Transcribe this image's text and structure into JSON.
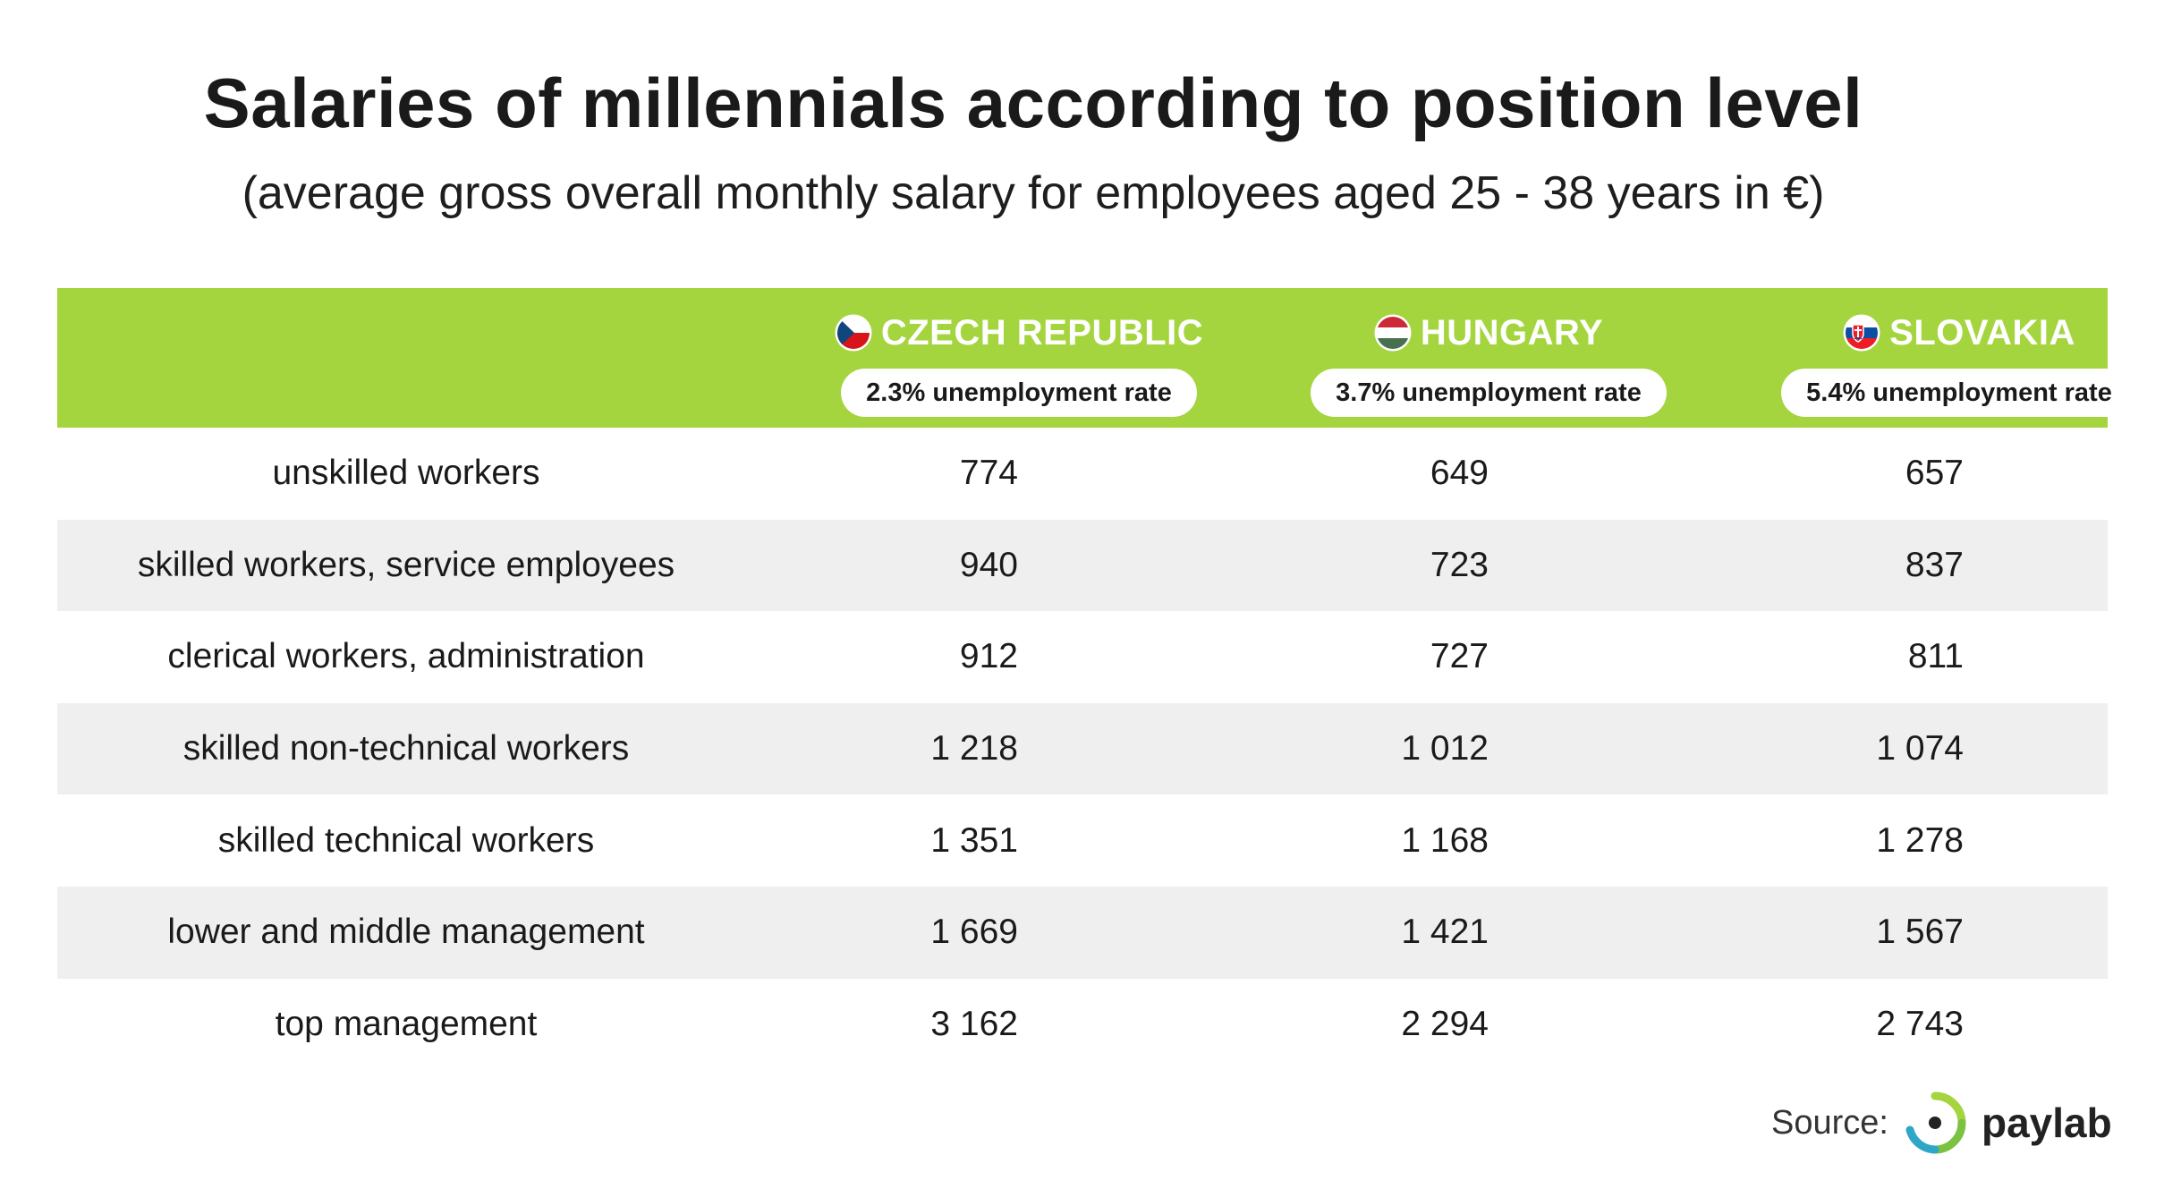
{
  "title": "Salaries of millennials according to position level",
  "subtitle": "(average gross overall monthly salary for employees aged 25 - 38 years in €)",
  "colors": {
    "header_bg": "#a4d53f",
    "alt_row_bg": "#efefef",
    "logo_green": "#a4d53f",
    "logo_blue": "#2fa6c8"
  },
  "chart_data": {
    "type": "table",
    "columns": [
      {
        "country": "CZECH REPUBLIC",
        "flag_icon": "czech-flag-icon",
        "unemployment": "2.3% unemployment rate"
      },
      {
        "country": "HUNGARY",
        "flag_icon": "hungary-flag-icon",
        "unemployment": "3.7% unemployment rate"
      },
      {
        "country": "SLOVAKIA",
        "flag_icon": "slovakia-flag-icon",
        "unemployment": "5.4% unemployment rate"
      }
    ],
    "rows": [
      {
        "label": "unskilled workers",
        "values": [
          "774",
          "649",
          "657"
        ]
      },
      {
        "label": "skilled workers, service employees",
        "values": [
          "940",
          "723",
          "837"
        ]
      },
      {
        "label": "clerical workers, administration",
        "values": [
          "912",
          "727",
          "811"
        ]
      },
      {
        "label": "skilled non-technical workers",
        "values": [
          "1 218",
          "1 012",
          "1 074"
        ]
      },
      {
        "label": "skilled technical workers",
        "values": [
          "1 351",
          "1 168",
          "1 278"
        ]
      },
      {
        "label": "lower and middle management",
        "values": [
          "1 669",
          "1 421",
          "1 567"
        ]
      },
      {
        "label": "top management",
        "values": [
          "3 162",
          "2 294",
          "2 743"
        ]
      }
    ]
  },
  "source": {
    "label": "Source:",
    "brand": "paylab",
    "logo_icon": "paylab-logo-icon"
  }
}
